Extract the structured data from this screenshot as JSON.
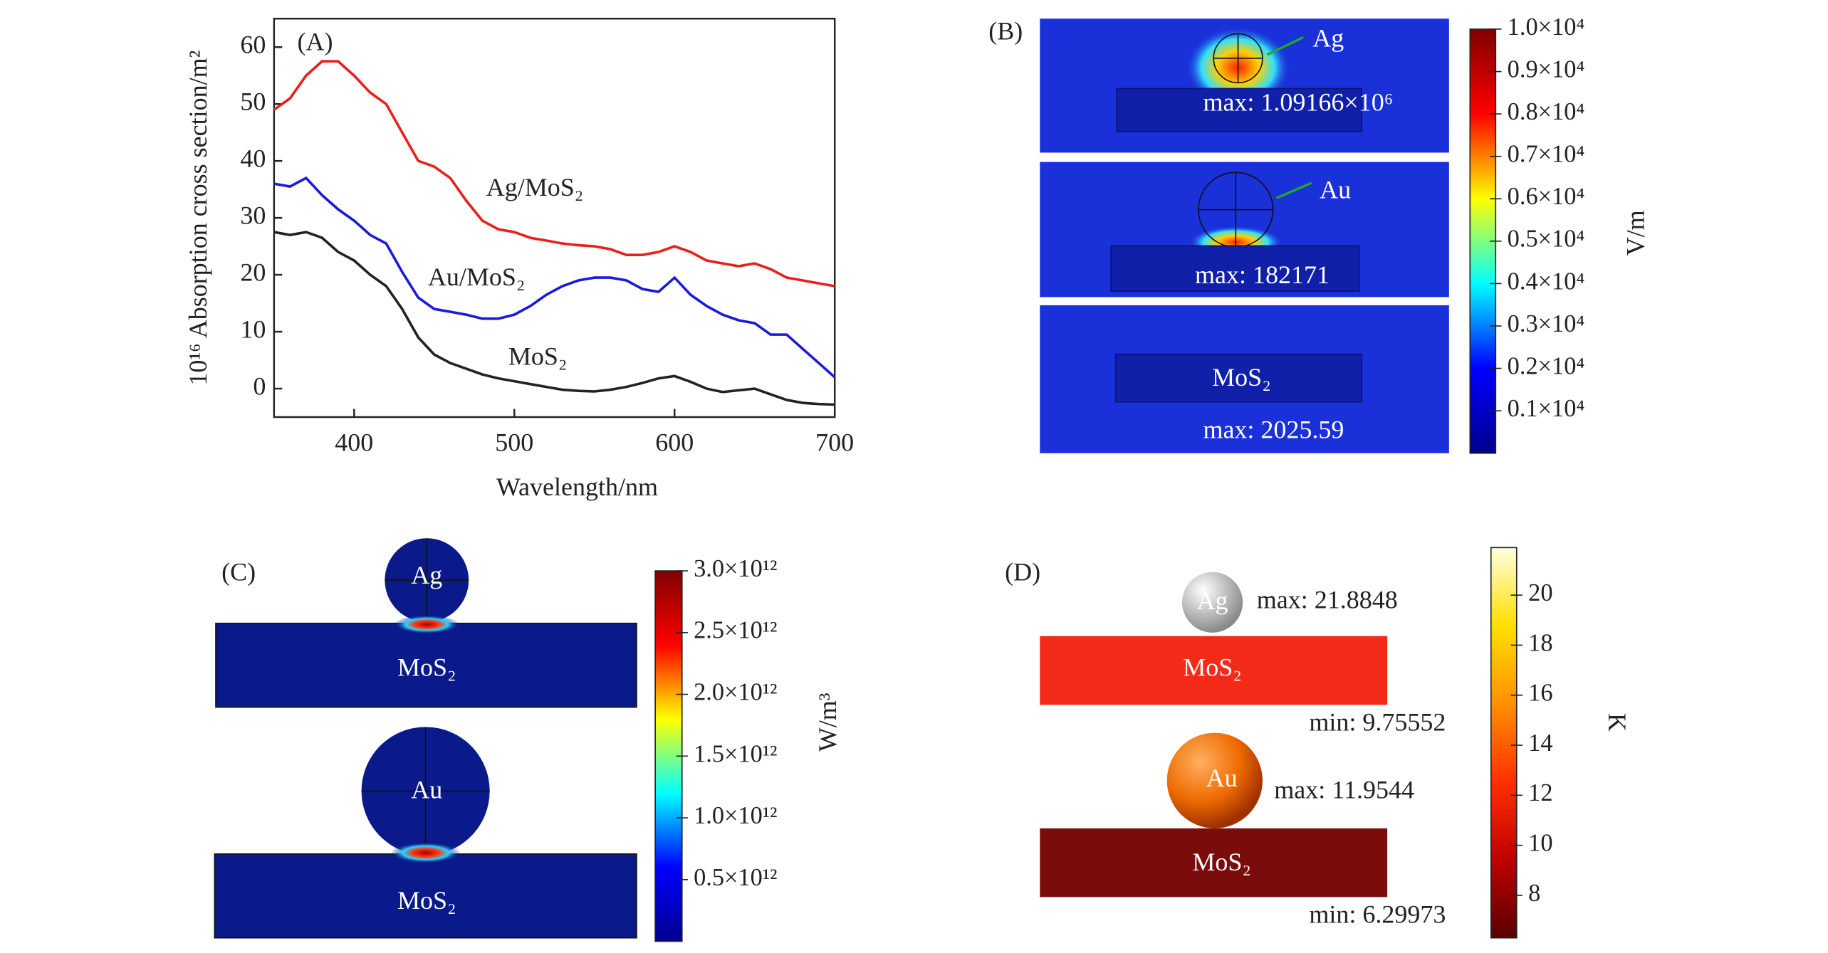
{
  "chart_data": {
    "type": "line",
    "panel_label": "(A)",
    "xlabel": "Wavelength/nm",
    "ylabel": "10¹⁶ Absorption cross section/m²",
    "x": [
      350,
      360,
      370,
      380,
      390,
      400,
      410,
      420,
      430,
      440,
      450,
      460,
      470,
      480,
      490,
      500,
      510,
      520,
      530,
      540,
      550,
      560,
      570,
      580,
      590,
      600,
      610,
      620,
      630,
      640,
      650,
      660,
      670,
      680,
      690,
      700
    ],
    "series": [
      {
        "name": "Ag/MoS₂",
        "color": "#e8201c",
        "values": [
          49,
          51,
          55,
          57.5,
          57.5,
          55,
          52,
          50,
          45,
          40,
          39,
          37,
          33,
          29.5,
          28,
          27.5,
          26.5,
          26,
          25.5,
          25.2,
          25,
          24.5,
          23.5,
          23.5,
          24,
          25,
          24,
          22.5,
          22,
          21.5,
          22,
          21,
          19.5,
          19,
          18.5,
          18
        ]
      },
      {
        "name": "Au/MoS₂",
        "color": "#1a1adb",
        "values": [
          36,
          35.5,
          37,
          34,
          31.5,
          29.5,
          27,
          25.5,
          20.5,
          16,
          14,
          13.5,
          13,
          12.3,
          12.3,
          13,
          14.5,
          16.5,
          18,
          19,
          19.5,
          19.5,
          19,
          17.5,
          17,
          19.5,
          16.5,
          14.5,
          13,
          12,
          11.5,
          9.5,
          9.5,
          7,
          4.5,
          2
        ]
      },
      {
        "name": "MoS₂",
        "color": "#222222",
        "values": [
          27.5,
          27,
          27.5,
          26.5,
          24,
          22.5,
          20,
          18,
          14,
          9,
          6,
          4.5,
          3.5,
          2.5,
          1.8,
          1.3,
          0.8,
          0.3,
          -0.2,
          -0.4,
          -0.5,
          -0.2,
          0.3,
          1,
          1.8,
          2.2,
          1.2,
          0,
          -0.6,
          -0.3,
          0,
          -1,
          -2,
          -2.5,
          -2.7,
          -2.8
        ]
      }
    ],
    "xlim": [
      350,
      700
    ],
    "xticks": [
      400,
      500,
      600,
      700
    ],
    "ylim": [
      -5,
      65
    ],
    "yticks": [
      0,
      10,
      20,
      30,
      40,
      50,
      60
    ]
  },
  "field_maps": [
    {
      "panel_label": "(B)",
      "unit": "V/m",
      "colorbar": {
        "colors": [
          "#00008f",
          "#0000ff",
          "#00ffff",
          "#ffff00",
          "#ff0000",
          "#800000"
        ],
        "lim": [
          0,
          10000
        ],
        "ticks": [
          {
            "value": 1000,
            "label": "0.1×10⁴"
          },
          {
            "value": 2000,
            "label": "0.2×10⁴"
          },
          {
            "value": 3000,
            "label": "0.3×10⁴"
          },
          {
            "value": 4000,
            "label": "0.4×10⁴"
          },
          {
            "value": 5000,
            "label": "0.5×10⁴"
          },
          {
            "value": 6000,
            "label": "0.6×10⁴"
          },
          {
            "value": 7000,
            "label": "0.7×10⁴"
          },
          {
            "value": 8000,
            "label": "0.8×10⁴"
          },
          {
            "value": 9000,
            "label": "0.9×10⁴"
          },
          {
            "value": 10000,
            "label": "1.0×10⁴"
          }
        ]
      },
      "frames": [
        {
          "particle": "Ag",
          "text": "max: 1.09166×10⁶"
        },
        {
          "particle": "Au",
          "text": "max: 182171"
        },
        {
          "substrate": "MoS₂",
          "text": "max: 2025.59"
        }
      ]
    },
    {
      "panel_label": "(C)",
      "unit": "W/m³",
      "colorbar": {
        "colors": [
          "#00008f",
          "#0000ff",
          "#00ffff",
          "#ffff00",
          "#ff0000",
          "#800000"
        ],
        "lim": [
          0,
          3000000000000
        ],
        "ticks": [
          {
            "value": 500000000000,
            "label": "0.5×10¹²"
          },
          {
            "value": 1000000000000,
            "label": "1.0×10¹²"
          },
          {
            "value": 1500000000000,
            "label": "1.5×10¹²"
          },
          {
            "value": 2000000000000,
            "label": "2.0×10¹²"
          },
          {
            "value": 2500000000000,
            "label": "2.5×10¹²"
          },
          {
            "value": 3000000000000,
            "label": "3.0×10¹²"
          }
        ]
      },
      "frames": [
        {
          "particle": "Ag",
          "substrate": "MoS₂"
        },
        {
          "particle": "Au",
          "substrate": "MoS₂"
        }
      ]
    },
    {
      "panel_label": "(D)",
      "unit": "K",
      "colorbar": {
        "colors": [
          "#5a0000",
          "#c00000",
          "#ff3000",
          "#ff9000",
          "#ffe000",
          "#ffffe0"
        ],
        "lim": [
          6.3,
          21.9
        ],
        "ticks": [
          8,
          10,
          12,
          14,
          16,
          18,
          20
        ]
      },
      "frames": [
        {
          "particle": "Ag",
          "max": "max: 21.8848",
          "substrate": "MoS₂",
          "min": "min: 9.75552"
        },
        {
          "particle": "Au",
          "max": "max: 11.9544",
          "substrate": "MoS₂",
          "min": "min: 6.29973"
        }
      ]
    }
  ]
}
